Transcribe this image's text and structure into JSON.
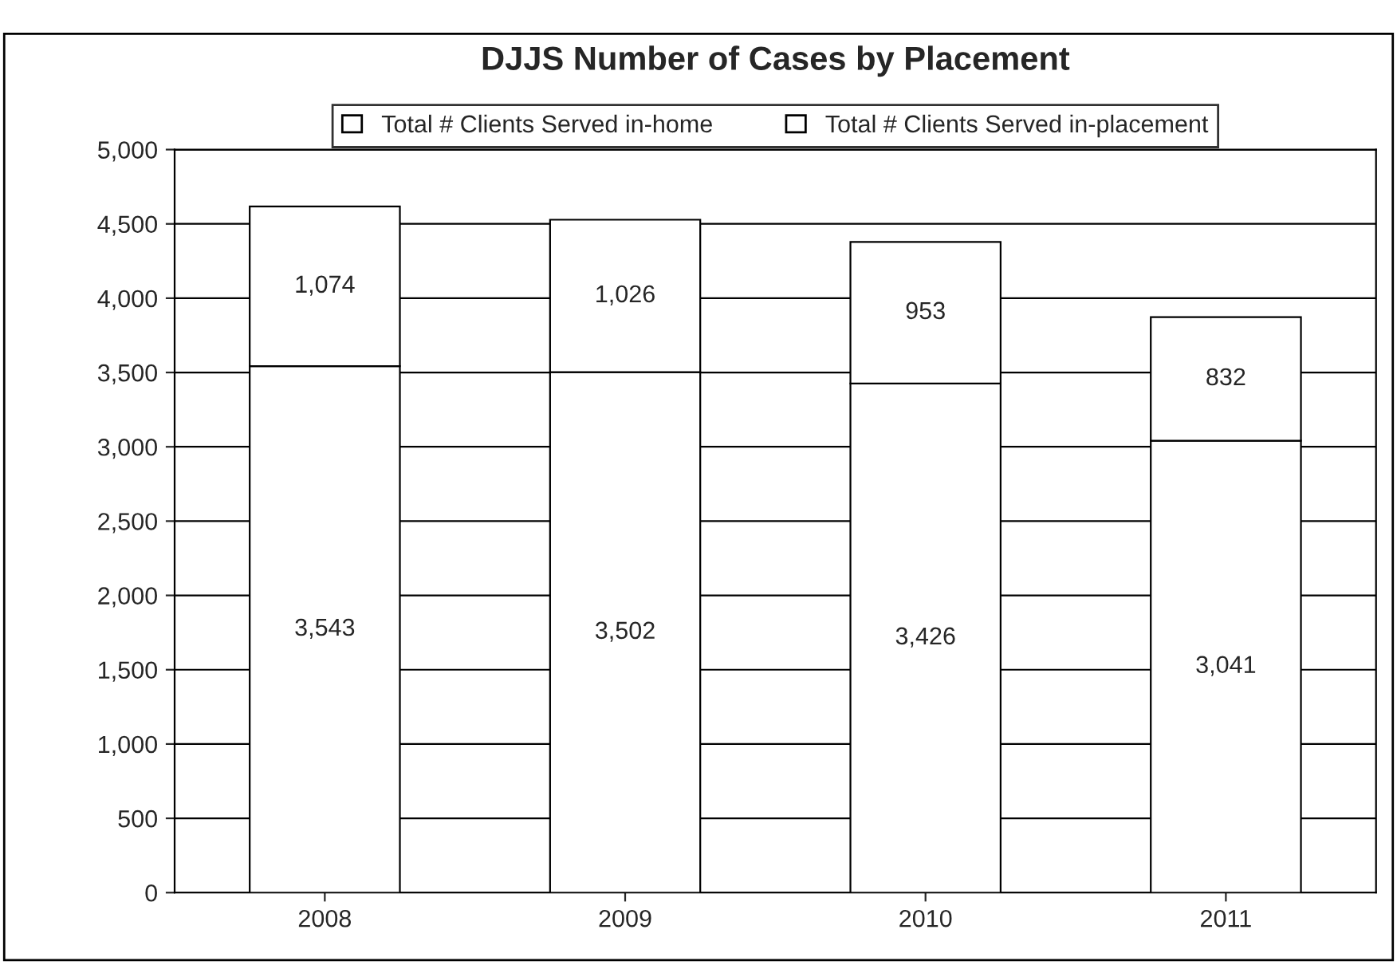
{
  "chart_data": {
    "type": "bar",
    "title": "DJJS Number of Cases by Placement",
    "categories": [
      "2008",
      "2009",
      "2010",
      "2011"
    ],
    "stacked": true,
    "series": [
      {
        "name": "Total # Clients Served in-home",
        "color": "#ffffff",
        "values": [
          3543,
          3502,
          3426,
          3041
        ],
        "value_labels": [
          "3,543",
          "3,502",
          "3,426",
          "3,041"
        ]
      },
      {
        "name": "Total # Clients Served in-placement",
        "color": "#ffffff",
        "values": [
          1074,
          1026,
          953,
          832
        ],
        "value_labels": [
          "1,074",
          "1,026",
          "953",
          "832"
        ]
      }
    ],
    "ylim": [
      0,
      5000
    ],
    "yticks": [
      0,
      500,
      {
        "value": 1000,
        "label": "1,000"
      },
      {
        "value": 1500,
        "label": "1,500"
      },
      {
        "value": 2000,
        "label": "2,000"
      },
      {
        "value": 2500,
        "label": "2,500"
      },
      {
        "value": 3000,
        "label": "3,000"
      },
      {
        "value": 3500,
        "label": "3,500"
      },
      {
        "value": 4000,
        "label": "4,000"
      },
      {
        "value": 4500,
        "label": "4,500"
      },
      {
        "value": 5000,
        "label": "5,000"
      }
    ],
    "grid": "y",
    "legend": "top"
  }
}
